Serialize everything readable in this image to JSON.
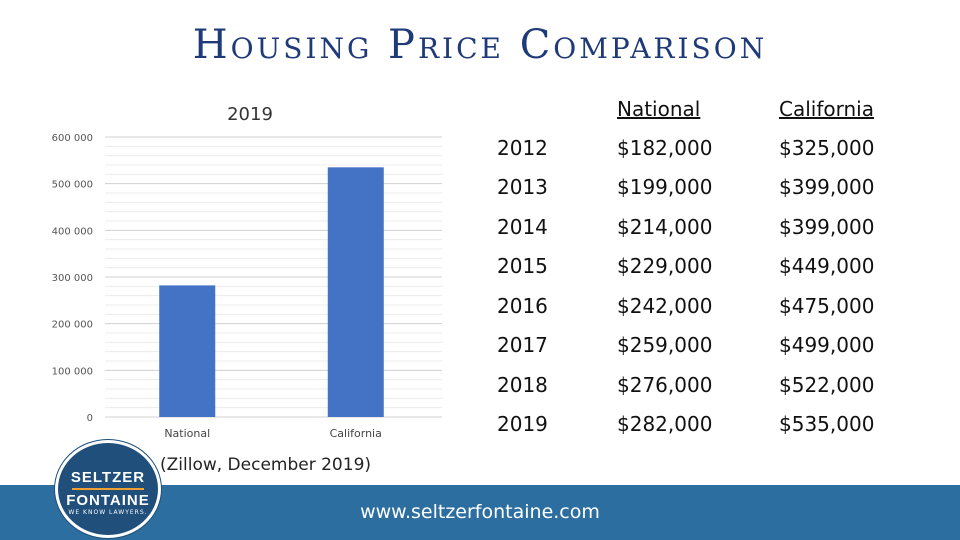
{
  "slide_title": "Housing Price Comparison",
  "source_note": "(Zillow, December 2019)",
  "chart_data": {
    "type": "bar",
    "title": "2019",
    "categories": [
      "National",
      "California"
    ],
    "values": [
      282000,
      535000
    ],
    "yticks": [
      "0",
      "100 000",
      "200 000",
      "300 000",
      "400 000",
      "500 000",
      "600 000"
    ],
    "ylim": [
      0,
      600000
    ],
    "bar_color": "#4472c4",
    "grid": true,
    "xlabel": "",
    "ylabel": ""
  },
  "table": {
    "headers": [
      "",
      "National",
      "California"
    ],
    "rows": [
      [
        "2012",
        "$182,000",
        "$325,000"
      ],
      [
        "2013",
        "$199,000",
        "$399,000"
      ],
      [
        "2014",
        "$214,000",
        "$399,000"
      ],
      [
        "2015",
        "$229,000",
        "$449,000"
      ],
      [
        "2016",
        "$242,000",
        "$475,000"
      ],
      [
        "2017",
        "$259,000",
        "$499,000"
      ],
      [
        "2018",
        "$276,000",
        "$522,000"
      ],
      [
        "2019",
        "$282,000",
        "$535,000"
      ]
    ]
  },
  "logo": {
    "line1": "SELTZER",
    "line2": "FONTAINE",
    "tagline": "WE KNOW LAWYERS."
  },
  "footer": {
    "url": "www.seltzerfontaine.com",
    "color": "#2c6e9f"
  }
}
